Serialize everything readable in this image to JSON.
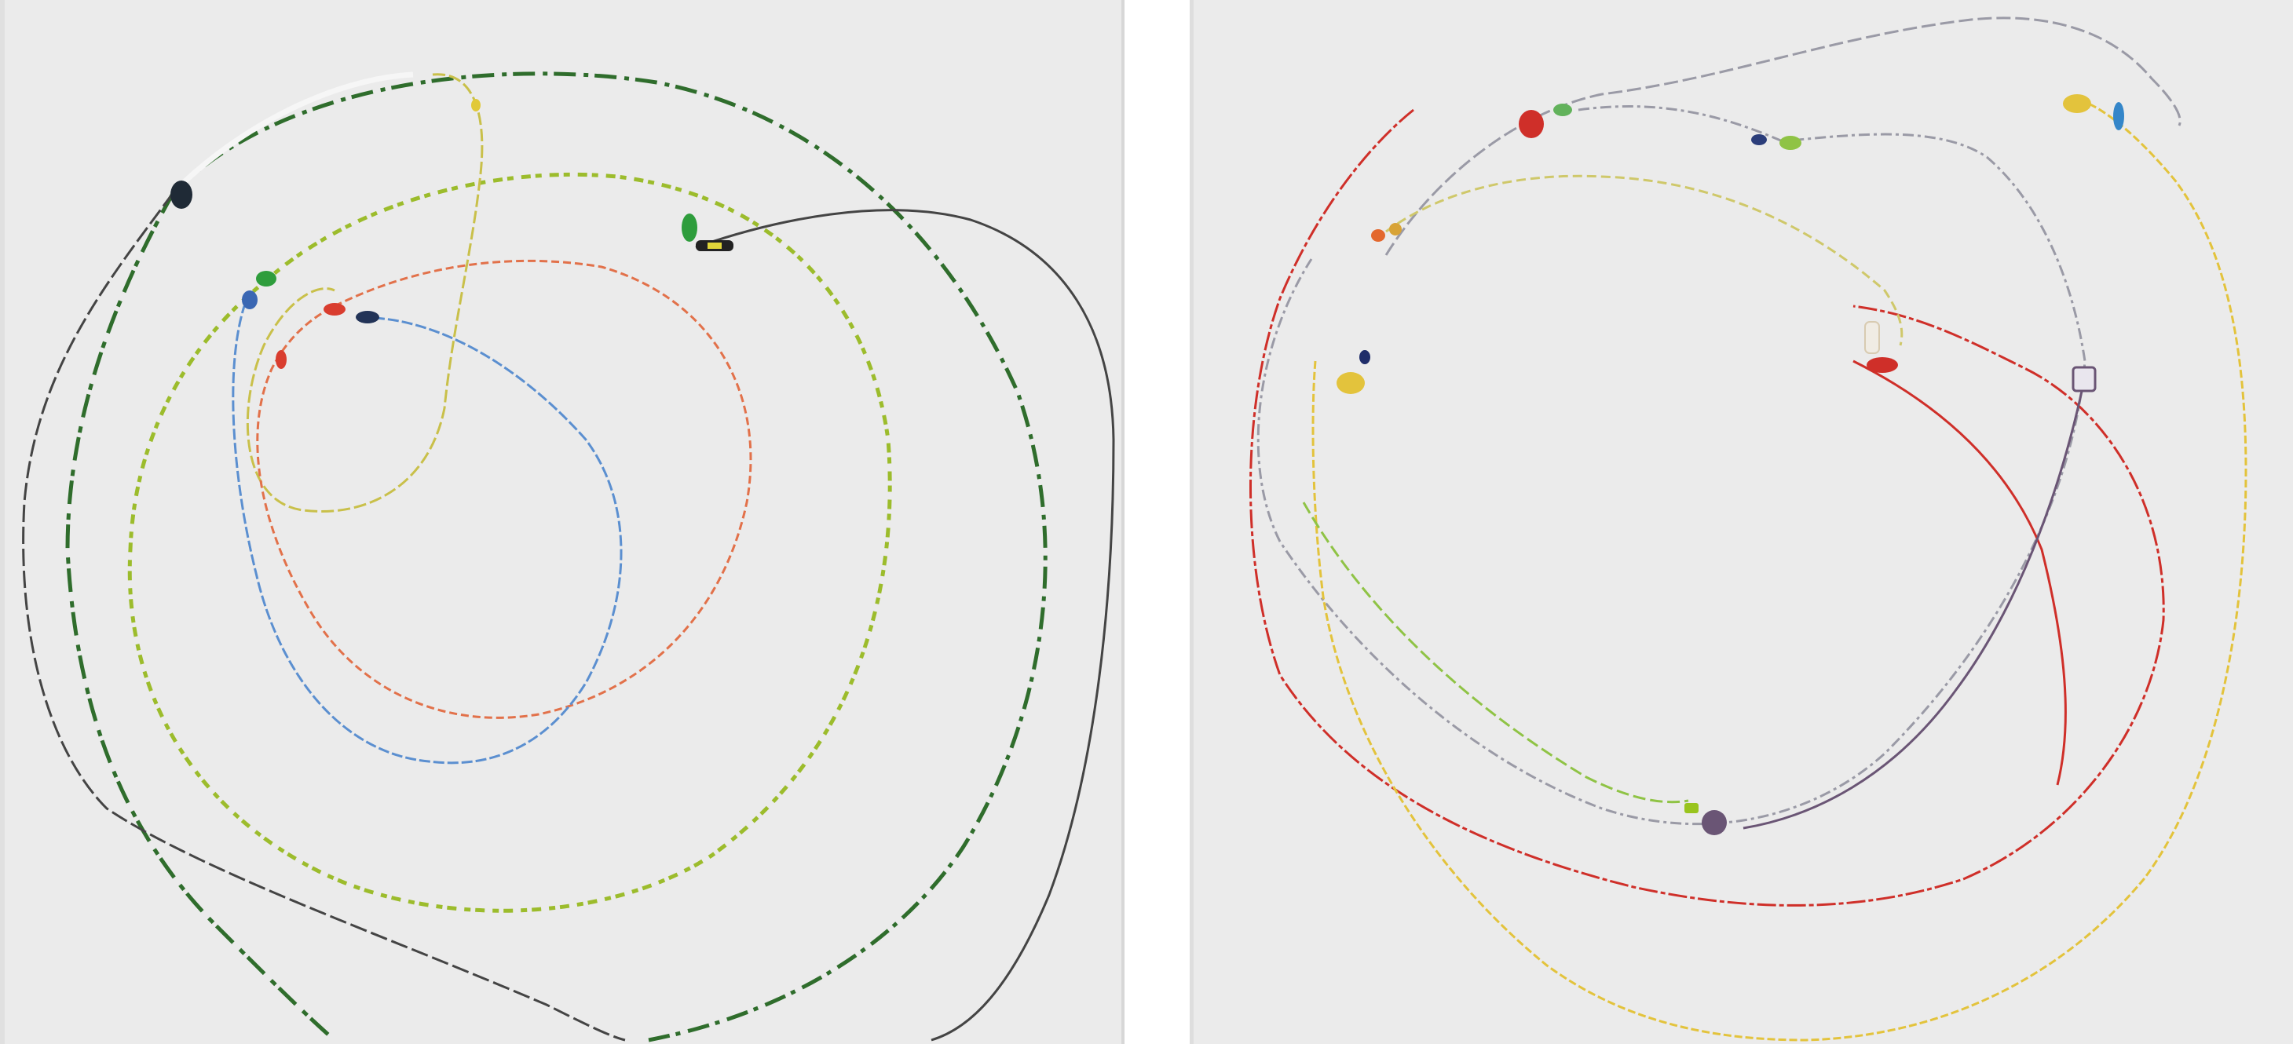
{
  "artwork": {
    "panels": [
      {
        "position": "left",
        "background": "#ebebeb",
        "strand_colors": {
          "dark_green": "#2f6d2c",
          "charcoal": "#444444",
          "yellow_green": "#9cbc2c",
          "yellow": "#d6cc3a",
          "red_orange": "#e2714a",
          "blue": "#5b8fd0"
        }
      },
      {
        "position": "right",
        "background": "#ebebeb",
        "strand_colors": {
          "gray": "#9a9aa6",
          "red": "#cf2f29",
          "yellow": "#e3c33c",
          "purple": "#6a5575",
          "green": "#8fc345"
        }
      }
    ],
    "separator_color": "#ffffff"
  }
}
